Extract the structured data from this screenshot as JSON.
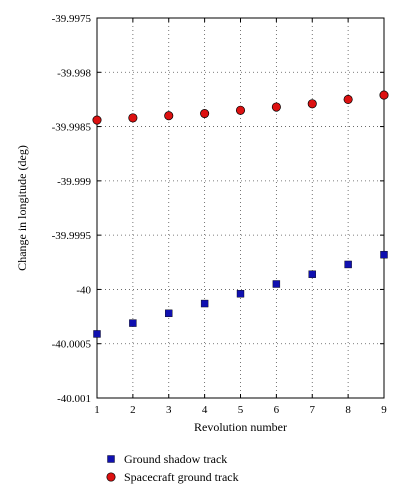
{
  "chart_data": {
    "type": "scatter",
    "xlabel": "Revolution number",
    "ylabel": "Change in longitude (deg)",
    "xlim": [
      1,
      9
    ],
    "ylim": [
      -40.001,
      -39.9975
    ],
    "x_ticks": [
      1,
      2,
      3,
      4,
      5,
      6,
      7,
      8,
      9
    ],
    "y_ticks": [
      -39.9975,
      -39.998,
      -39.9985,
      -39.999,
      -39.9995,
      -40,
      -40.0005,
      -40.001
    ],
    "y_tick_labels": [
      "-39.9975",
      "-39.998",
      "-39.9985",
      "-39.999",
      "-39.9995",
      "-40",
      "-40.0005",
      "-40.001"
    ],
    "grid": true,
    "legend_position": "bottom-left-outside",
    "series": [
      {
        "name": "Ground shadow track",
        "marker": "square",
        "color": "#1010b0",
        "x": [
          1,
          2,
          3,
          4,
          5,
          6,
          7,
          8,
          9
        ],
        "values": [
          -40.00041,
          -40.00031,
          -40.00022,
          -40.00013,
          -40.00004,
          -39.99995,
          -39.99986,
          -39.99977,
          -39.99968
        ]
      },
      {
        "name": "Spacecraft ground track",
        "marker": "circle",
        "color": "#dd1111",
        "x": [
          1,
          2,
          3,
          4,
          5,
          6,
          7,
          8,
          9
        ],
        "values": [
          -39.99844,
          -39.99842,
          -39.9984,
          -39.99838,
          -39.99835,
          -39.99832,
          -39.99829,
          -39.99825,
          -39.99821
        ]
      }
    ]
  }
}
